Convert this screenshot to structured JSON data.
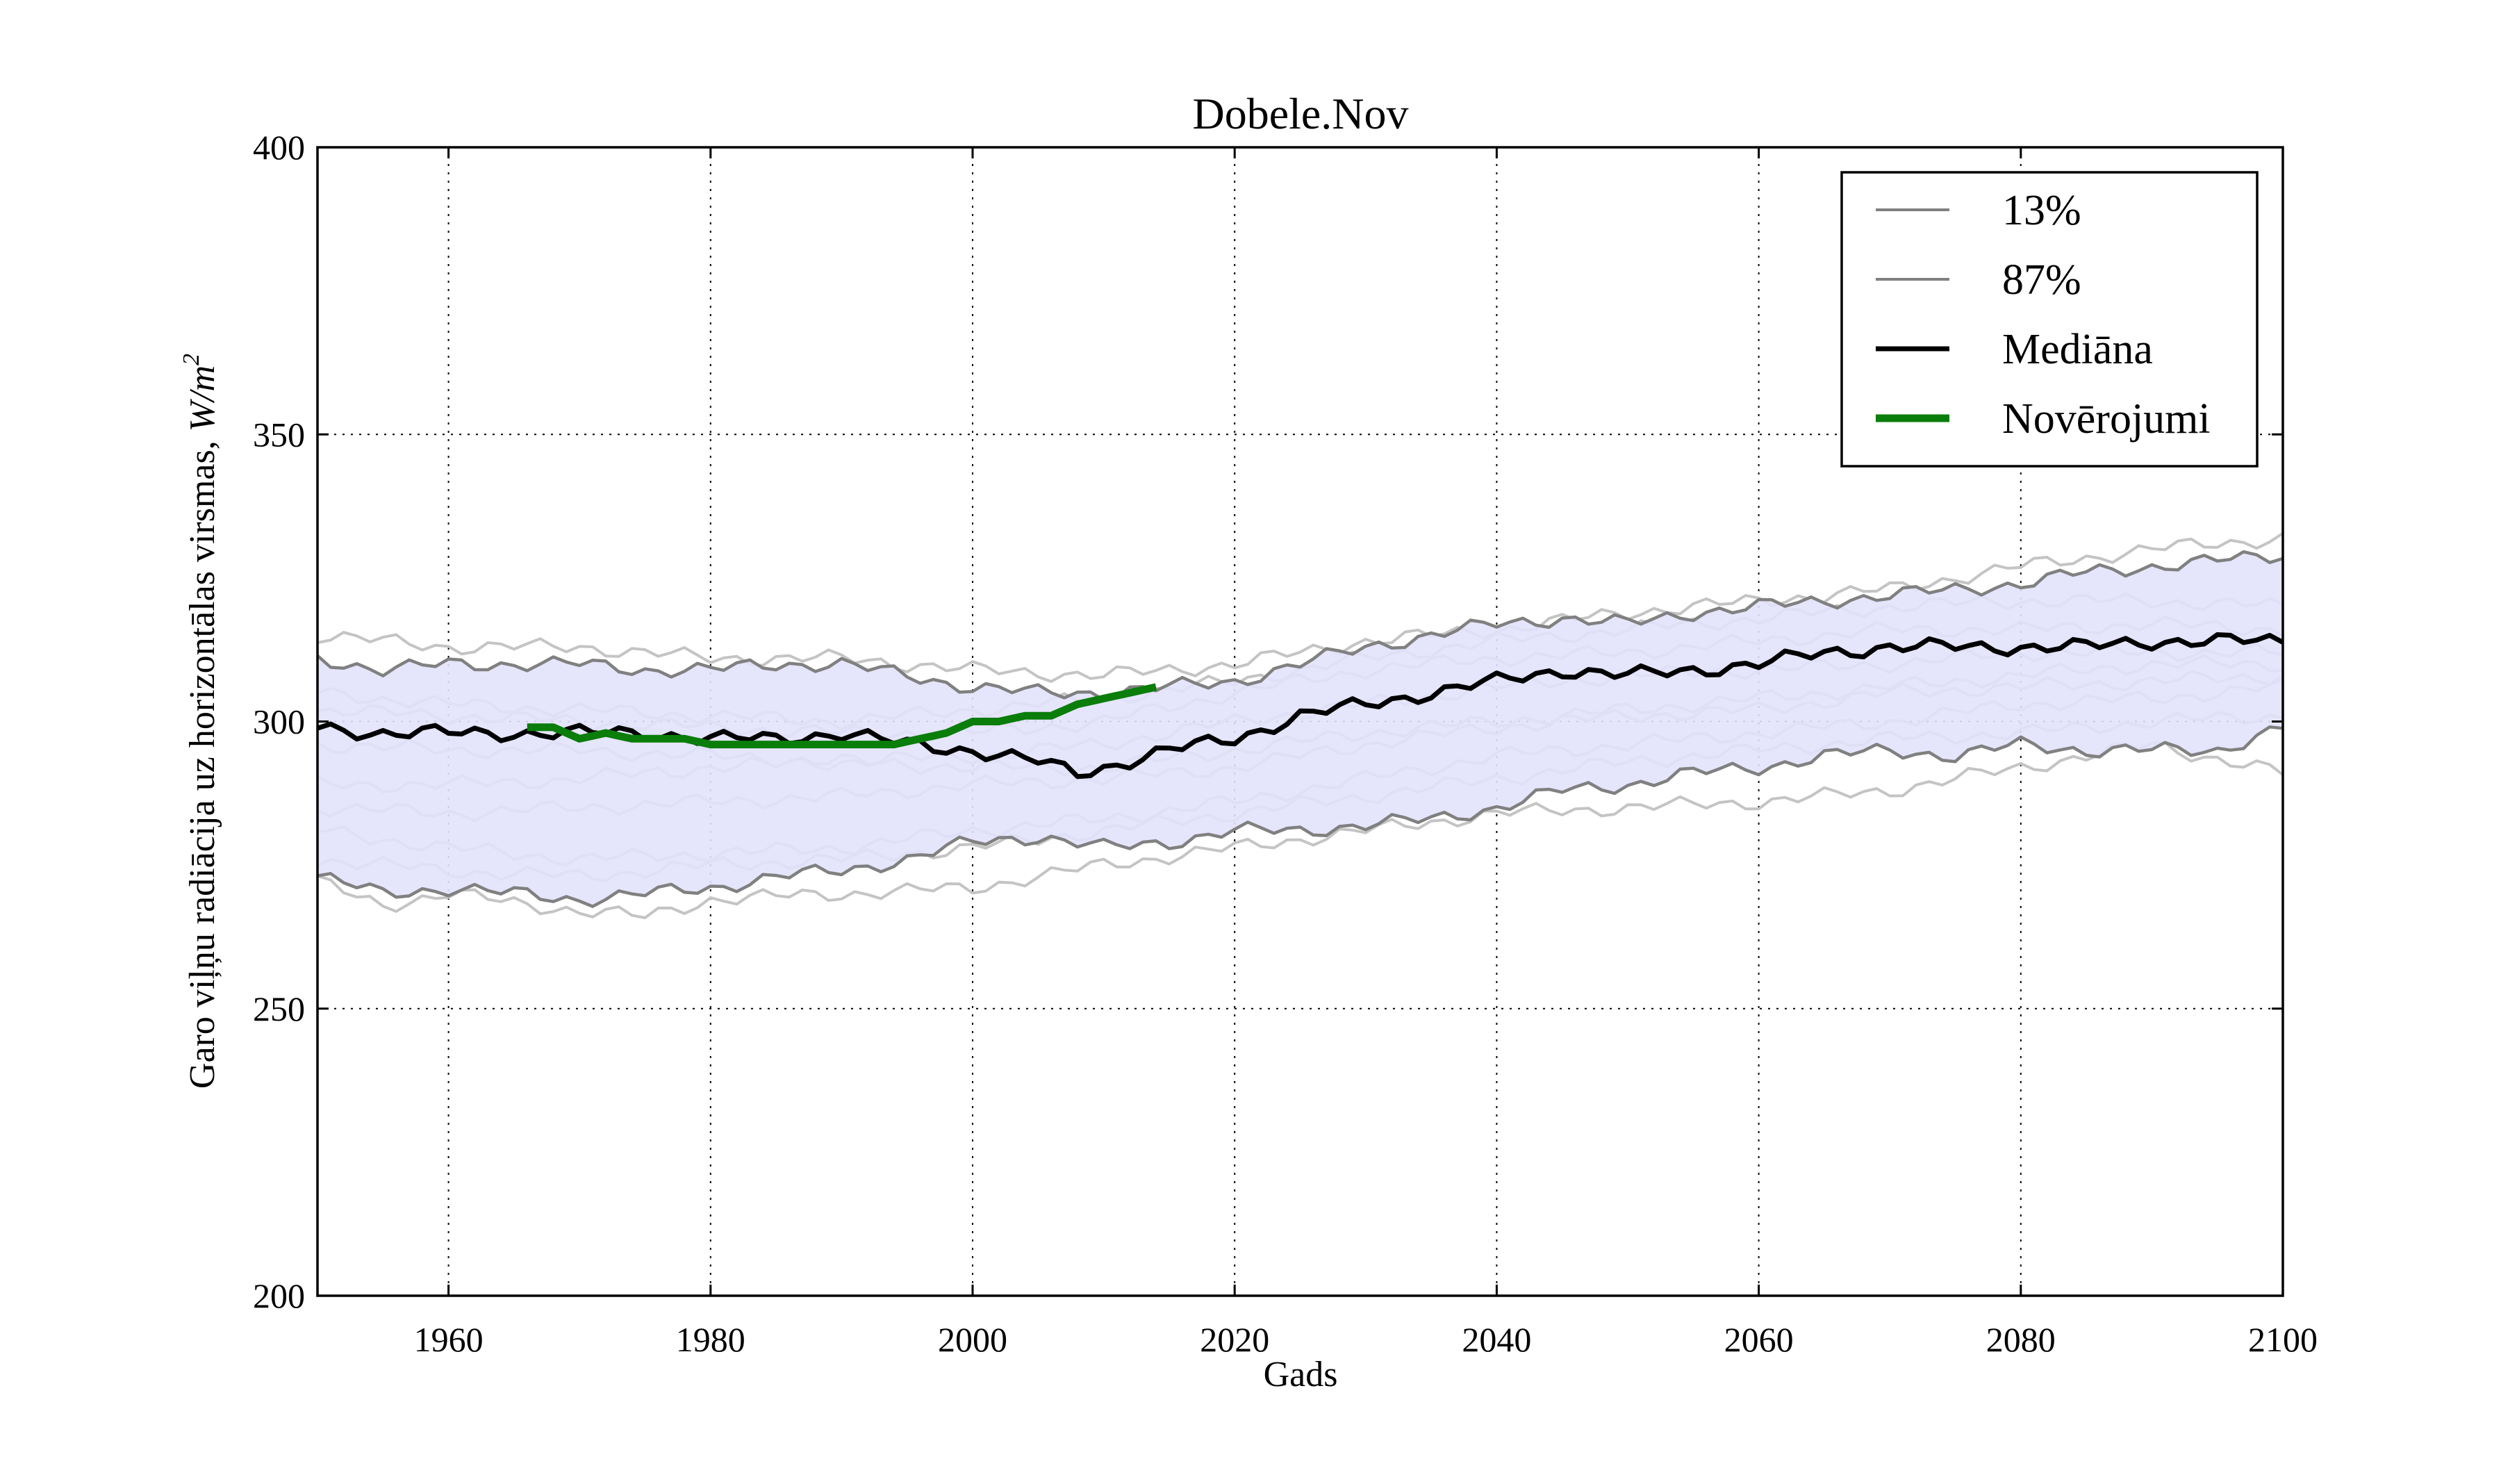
{
  "chart_data": {
    "type": "line",
    "title": "Dobele.Nov",
    "xlabel": "Gads",
    "ylabel": "Garo viļņu radiācija uz horizontālas virsmas, ",
    "ylabel_unit": "W/m",
    "ylabel_unit_exp": "2",
    "xlim": [
      1950,
      2100
    ],
    "ylim": [
      200,
      400
    ],
    "xticks": [
      1960,
      1980,
      2000,
      2020,
      2040,
      2060,
      2080,
      2100
    ],
    "yticks": [
      200,
      250,
      300,
      350,
      400
    ],
    "grid": true,
    "legend_position": "top-right",
    "colors": {
      "band": "#e2e2fc",
      "band_edge": "#808080",
      "ensemble": "#c4c4c4",
      "median": "#000000",
      "observations": "#0a7d0a"
    },
    "legend": [
      {
        "label": "13%",
        "color": "#808080",
        "style": "thin"
      },
      {
        "label": "87%",
        "color": "#808080",
        "style": "thin"
      },
      {
        "label": "Mediāna",
        "color": "#000000",
        "style": "thick"
      },
      {
        "label": "Novērojumi",
        "color": "#0a7d0a",
        "style": "thicker"
      }
    ],
    "series": [
      {
        "name": "13%",
        "x": [
          1950,
          1955,
          1960,
          1965,
          1970,
          1975,
          1980,
          1985,
          1990,
          1995,
          2000,
          2005,
          2010,
          2015,
          2020,
          2025,
          2030,
          2035,
          2040,
          2045,
          2050,
          2055,
          2060,
          2065,
          2070,
          2075,
          2080,
          2085,
          2090,
          2095,
          2100
        ],
        "y": [
          273,
          270,
          271,
          270,
          269,
          270,
          271,
          273,
          274,
          276,
          279,
          280,
          278,
          279,
          281,
          281,
          282,
          283,
          285,
          288,
          289,
          291,
          292,
          294,
          295,
          294,
          296,
          295,
          295,
          295,
          299
        ]
      },
      {
        "name": "87%",
        "x": [
          1950,
          1955,
          1960,
          1965,
          1970,
          1975,
          1980,
          1985,
          1990,
          1995,
          2000,
          2005,
          2010,
          2015,
          2020,
          2025,
          2030,
          2035,
          2040,
          2045,
          2050,
          2055,
          2060,
          2065,
          2070,
          2075,
          2080,
          2085,
          2090,
          2095,
          2100
        ],
        "y": [
          311,
          309,
          310,
          310,
          310,
          309,
          309,
          310,
          310,
          308,
          306,
          305,
          305,
          306,
          307,
          310,
          313,
          315,
          317,
          318,
          317,
          319,
          320,
          321,
          322,
          323,
          324,
          326,
          327,
          328,
          329
        ]
      },
      {
        "name": "Mediāna",
        "x": [
          1950,
          1955,
          1960,
          1965,
          1970,
          1975,
          1980,
          1985,
          1990,
          1995,
          2000,
          2005,
          2008,
          2010,
          2015,
          2020,
          2025,
          2030,
          2035,
          2040,
          2045,
          2050,
          2055,
          2060,
          2065,
          2070,
          2075,
          2080,
          2085,
          2090,
          2095,
          2100
        ],
        "y": [
          299,
          298,
          298,
          298,
          298,
          298,
          297,
          297,
          298,
          296,
          295,
          293,
          291,
          292,
          295,
          297,
          301,
          303,
          305,
          307,
          309,
          308,
          309,
          310,
          312,
          313,
          313,
          313,
          313,
          314,
          314,
          314
        ]
      },
      {
        "name": "Novērojumi",
        "x": [
          1966,
          1968,
          1970,
          1972,
          1974,
          1976,
          1978,
          1980,
          1982,
          1984,
          1986,
          1988,
          1990,
          1992,
          1994,
          1996,
          1998,
          2000,
          2002,
          2004,
          2006,
          2008,
          2010,
          2012,
          2014
        ],
        "y": [
          299,
          299,
          297,
          298,
          297,
          297,
          297,
          296,
          296,
          296,
          296,
          296,
          296,
          296,
          296,
          297,
          298,
          300,
          300,
          301,
          301,
          303,
          304,
          305,
          306
        ]
      }
    ],
    "ensemble": [
      {
        "x": [
          1950,
          1960,
          1970,
          1980,
          1990,
          2000,
          2010,
          2020,
          2030,
          2040,
          2050,
          2060,
          2070,
          2080,
          2090,
          2100
        ],
        "y": [
          315,
          313,
          313,
          311,
          311,
          309,
          308,
          310,
          314,
          316,
          319,
          321,
          323,
          327,
          330,
          332
        ]
      },
      {
        "x": [
          1950,
          1960,
          1970,
          1980,
          1990,
          2000,
          2010,
          2020,
          2030,
          2040,
          2050,
          2060,
          2070,
          2080,
          2090,
          2100
        ],
        "y": [
          305,
          303,
          302,
          301,
          300,
          302,
          304,
          307,
          311,
          314,
          316,
          318,
          320,
          321,
          321,
          320
        ]
      },
      {
        "x": [
          1950,
          1960,
          1970,
          1980,
          1990,
          2000,
          2010,
          2020,
          2030,
          2040,
          2050,
          2060,
          2070,
          2080,
          2090,
          2100
        ],
        "y": [
          302,
          301,
          300,
          299,
          298,
          298,
          300,
          305,
          309,
          311,
          312,
          314,
          316,
          316,
          317,
          316
        ]
      },
      {
        "x": [
          1950,
          1960,
          1970,
          1980,
          1990,
          2000,
          2010,
          2020,
          2030,
          2040,
          2050,
          2060,
          2070,
          2080,
          2090,
          2100
        ],
        "y": [
          289,
          289,
          290,
          292,
          293,
          294,
          296,
          300,
          303,
          306,
          308,
          309,
          310,
          312,
          312,
          312
        ]
      },
      {
        "x": [
          1950,
          1960,
          1970,
          1980,
          1990,
          2000,
          2010,
          2020,
          2030,
          2040,
          2050,
          2060,
          2070,
          2080,
          2090,
          2100
        ],
        "y": [
          285,
          284,
          285,
          286,
          287,
          289,
          290,
          292,
          296,
          299,
          301,
          302,
          305,
          306,
          307,
          308
        ]
      },
      {
        "x": [
          1950,
          1960,
          1970,
          1980,
          1990,
          2000,
          2010,
          2020,
          2030,
          2040,
          2050,
          2060,
          2070,
          2080,
          2090,
          2100
        ],
        "y": [
          281,
          278,
          276,
          277,
          278,
          281,
          283,
          286,
          290,
          294,
          296,
          298,
          300,
          303,
          304,
          306
        ]
      },
      {
        "x": [
          1950,
          1960,
          1970,
          1980,
          1990,
          2000,
          2010,
          2020,
          2030,
          2040,
          2050,
          2060,
          2070,
          2080,
          2090,
          2100
        ],
        "y": [
          276,
          274,
          273,
          275,
          276,
          278,
          281,
          284,
          287,
          290,
          293,
          295,
          297,
          298,
          300,
          301
        ]
      },
      {
        "x": [
          1950,
          1955,
          1960,
          1970,
          1975,
          1980,
          1990,
          2000,
          2010,
          2020,
          2030,
          2040,
          2050,
          2060,
          2070,
          2080,
          2090,
          2100
        ],
        "y": [
          272,
          268,
          270,
          267,
          266,
          269,
          270,
          271,
          275,
          278,
          281,
          284,
          285,
          286,
          288,
          292,
          296,
          291
        ]
      },
      {
        "x": [
          1950,
          1960,
          1970,
          1980,
          1990,
          2000,
          2010,
          2020,
          2030,
          2040,
          2050,
          2060,
          2070,
          2080,
          2090,
          2100
        ],
        "y": [
          296,
          295,
          295,
          294,
          293,
          292,
          292,
          295,
          298,
          300,
          302,
          304,
          306,
          308,
          310,
          310
        ]
      }
    ]
  }
}
